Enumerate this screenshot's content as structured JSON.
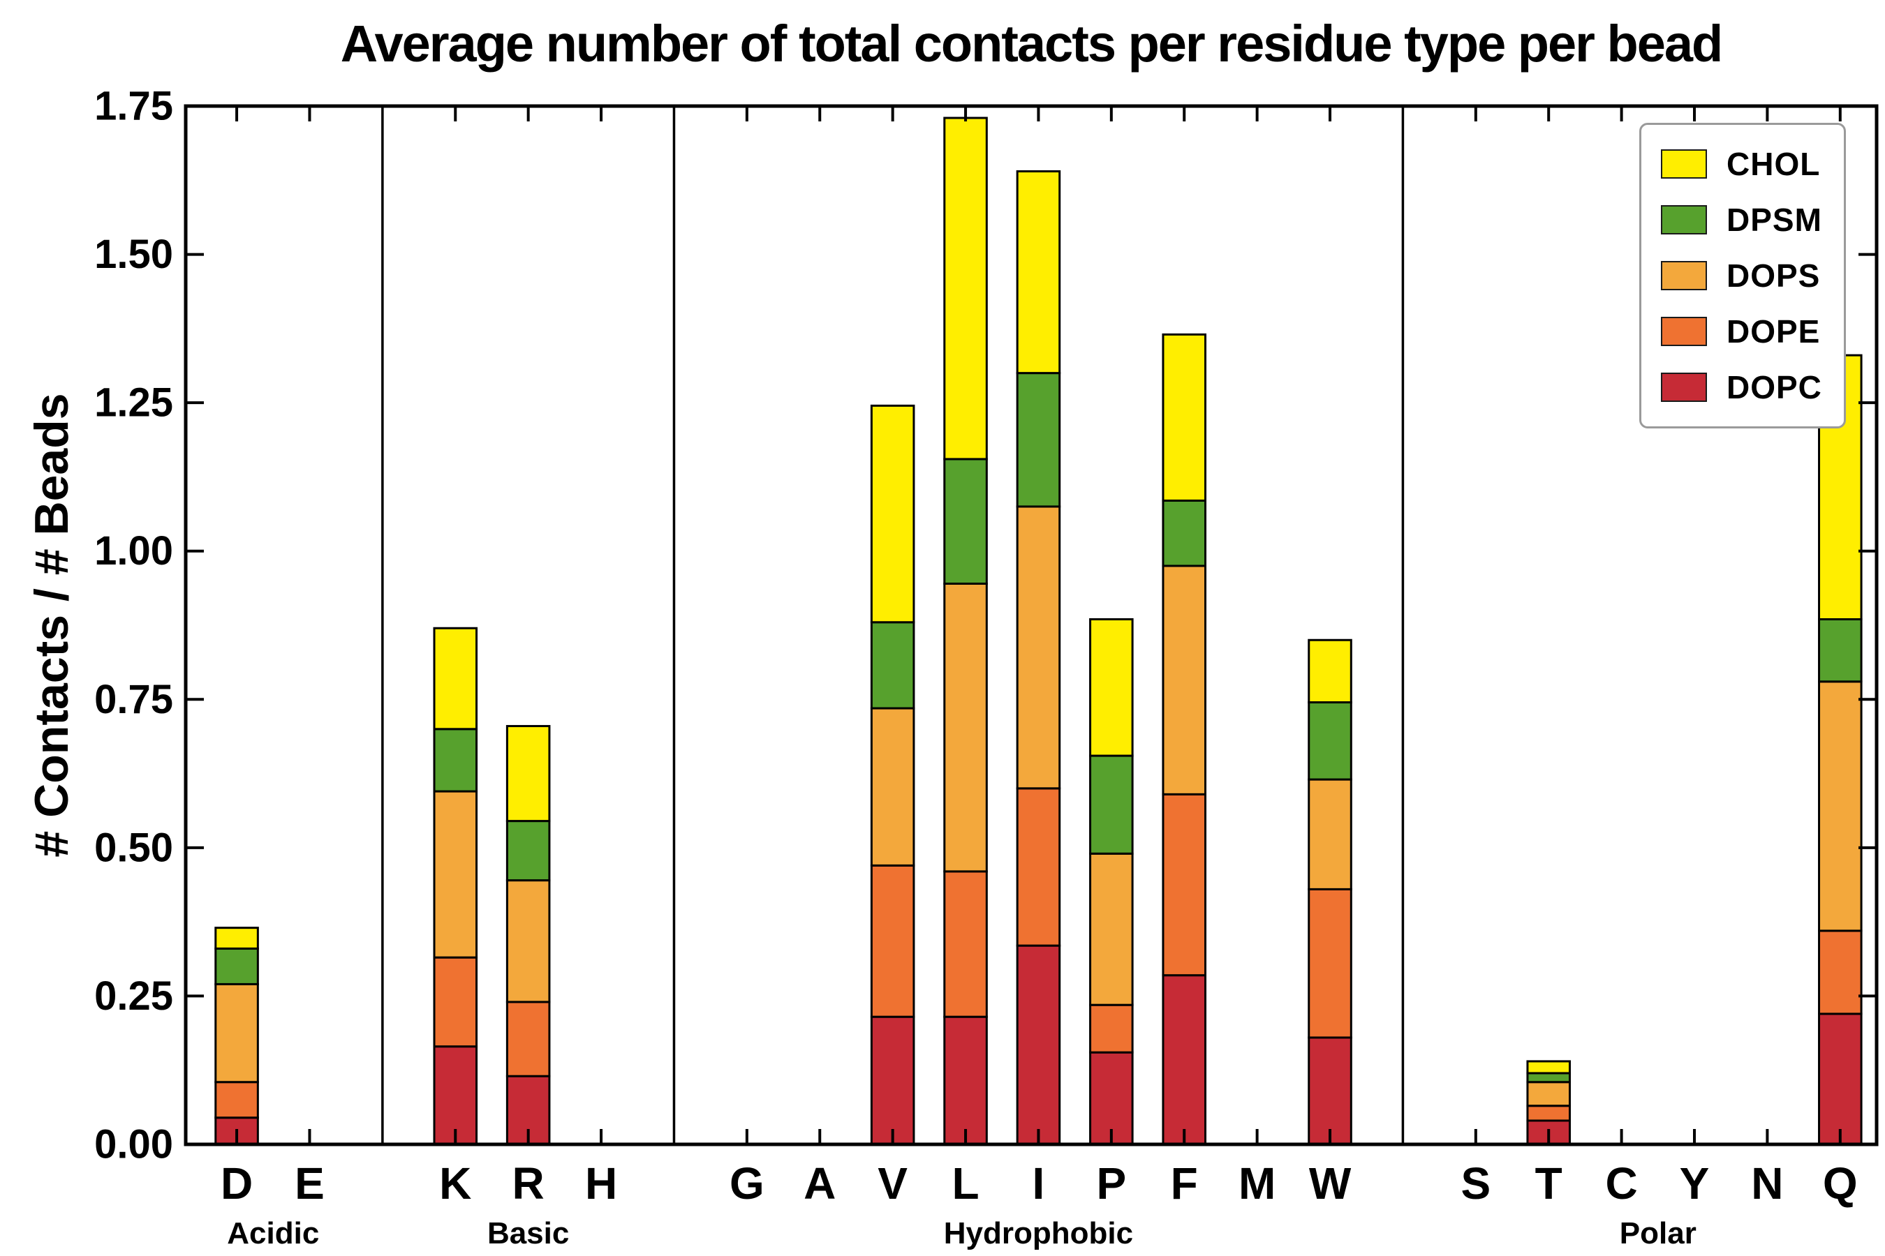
{
  "chart_data": {
    "type": "bar",
    "subtype": "stacked-bar",
    "title": "Average number of total contacts per residue type per bead",
    "ylabel": "# Contacts / # Beads",
    "xlabel": "",
    "ylim": [
      0,
      1.75
    ],
    "grid": false,
    "y_ticks": [
      {
        "value": 0.0,
        "label": "0.00"
      },
      {
        "value": 0.25,
        "label": "0.25"
      },
      {
        "value": 0.5,
        "label": "0.50"
      },
      {
        "value": 0.75,
        "label": "0.75"
      },
      {
        "value": 1.0,
        "label": "1.00"
      },
      {
        "value": 1.25,
        "label": "1.25"
      },
      {
        "value": 1.5,
        "label": "1.50"
      },
      {
        "value": 1.75,
        "label": "1.75"
      }
    ],
    "groups": [
      {
        "label": "Acidic",
        "categories": [
          "D",
          "E"
        ]
      },
      {
        "label": "Basic",
        "categories": [
          "K",
          "R",
          "H"
        ]
      },
      {
        "label": "Hydrophobic",
        "categories": [
          "G",
          "A",
          "V",
          "L",
          "I",
          "P",
          "F",
          "M",
          "W"
        ]
      },
      {
        "label": "Polar",
        "categories": [
          "S",
          "T",
          "C",
          "Y",
          "N",
          "Q"
        ]
      }
    ],
    "categories": [
      "D",
      "E",
      "K",
      "R",
      "H",
      "G",
      "A",
      "V",
      "L",
      "I",
      "P",
      "F",
      "M",
      "W",
      "S",
      "T",
      "C",
      "Y",
      "N",
      "Q"
    ],
    "series": [
      {
        "name": "DOPC",
        "color": "#c62b36",
        "values": [
          0.045,
          0,
          0.165,
          0.115,
          0,
          0,
          0,
          0.215,
          0.215,
          0.335,
          0.155,
          0.285,
          0,
          0.18,
          0,
          0.04,
          0,
          0,
          0,
          0.22
        ]
      },
      {
        "name": "DOPE",
        "color": "#ef7231",
        "values": [
          0.06,
          0,
          0.15,
          0.125,
          0,
          0,
          0,
          0.255,
          0.245,
          0.265,
          0.08,
          0.305,
          0,
          0.25,
          0,
          0.025,
          0,
          0,
          0,
          0.14
        ]
      },
      {
        "name": "DOPS",
        "color": "#f3a83c",
        "values": [
          0.165,
          0,
          0.28,
          0.205,
          0,
          0,
          0,
          0.265,
          0.485,
          0.475,
          0.255,
          0.385,
          0,
          0.185,
          0,
          0.04,
          0,
          0,
          0,
          0.42
        ]
      },
      {
        "name": "DPSM",
        "color": "#57a12d",
        "values": [
          0.06,
          0,
          0.105,
          0.1,
          0,
          0,
          0,
          0.145,
          0.21,
          0.225,
          0.165,
          0.11,
          0,
          0.13,
          0,
          0.015,
          0,
          0,
          0,
          0.105
        ]
      },
      {
        "name": "CHOL",
        "color": "#ffee00",
        "values": [
          0.035,
          0,
          0.17,
          0.16,
          0,
          0,
          0,
          0.365,
          0.575,
          0.34,
          0.23,
          0.28,
          0,
          0.105,
          0,
          0.02,
          0,
          0,
          0,
          0.445
        ]
      }
    ],
    "totals": {
      "D": 0.365,
      "K": 0.87,
      "R": 0.705,
      "V": 1.245,
      "L": 1.73,
      "I": 1.64,
      "P": 0.885,
      "F": 1.365,
      "W": 0.85,
      "T": 0.14,
      "Q": 1.33
    },
    "legend": {
      "position": "upper right",
      "order": [
        "CHOL",
        "DPSM",
        "DOPS",
        "DOPE",
        "DOPC"
      ]
    }
  }
}
